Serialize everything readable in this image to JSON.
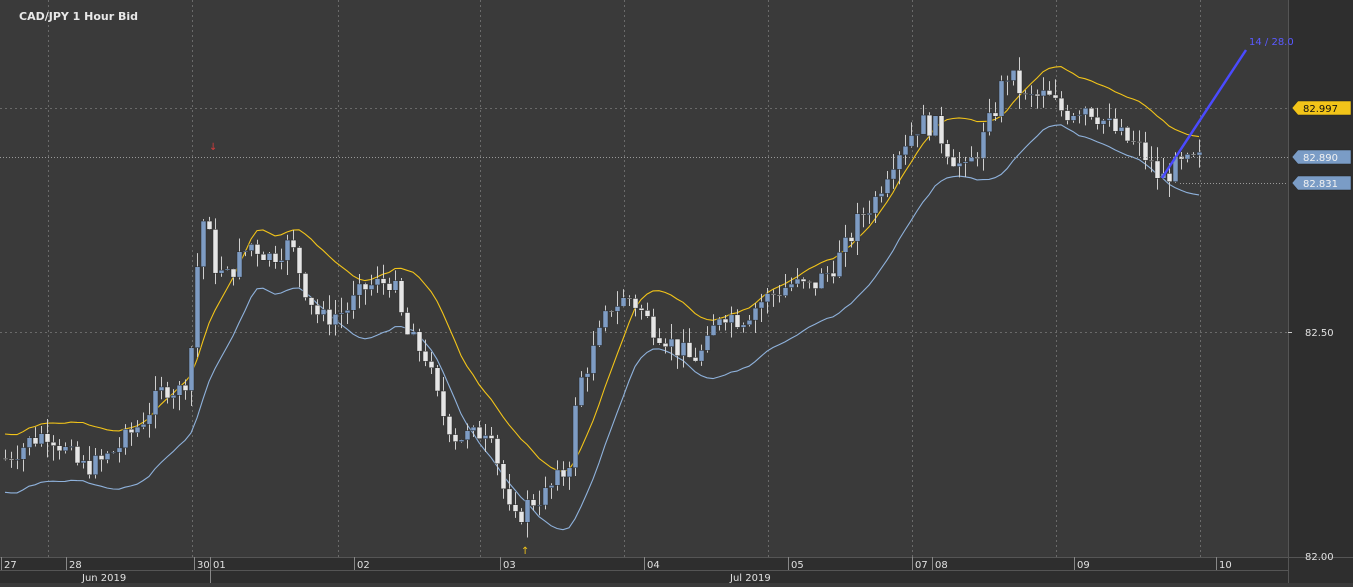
{
  "window": {
    "title": "CAD/JPY  1 Hour Bid"
  },
  "colors": {
    "background": "#3a3a3a",
    "axis_panel": "#2e2e2e",
    "grid": "#6a6a6a",
    "bull": "#7e9cc4",
    "bear": "#e6e6e6",
    "wick": "#cfcfcf",
    "upper_band": "#f2c419",
    "lower_band": "#8fb2dc",
    "trendline": "#4a4aff",
    "label_yellow": "#f2c419",
    "label_blue": "#7a9cc6"
  },
  "chart_data": {
    "type": "candlestick",
    "title": "CAD/JPY  1 Hour Bid",
    "ylim": [
      82.0,
      83.12
    ],
    "y_ticks": [
      "82.50",
      "82.00"
    ],
    "price_labels": [
      {
        "text": "82.997",
        "style": "yellow"
      },
      {
        "text": "82.890",
        "style": "blue"
      },
      {
        "text": "82.831",
        "style": "blue"
      }
    ],
    "x_day_labels": [
      "27",
      "28",
      "30",
      "01",
      "02",
      "03",
      "04",
      "05",
      "07",
      "08",
      "09",
      "10"
    ],
    "x_month_labels": [
      "Jun 2019",
      "Jul 2019"
    ],
    "trendline_label": "14 / 28.0",
    "markers": [
      {
        "symbol": "↑",
        "kind": "low-arrow"
      },
      {
        "symbol": "↓",
        "kind": "high-arrow"
      }
    ],
    "candles_note": "approx. hourly OHLC read from chart",
    "series": [
      {
        "name": "upper band",
        "color": "#f2c419"
      },
      {
        "name": "lower band",
        "color": "#8fb2dc"
      }
    ]
  }
}
